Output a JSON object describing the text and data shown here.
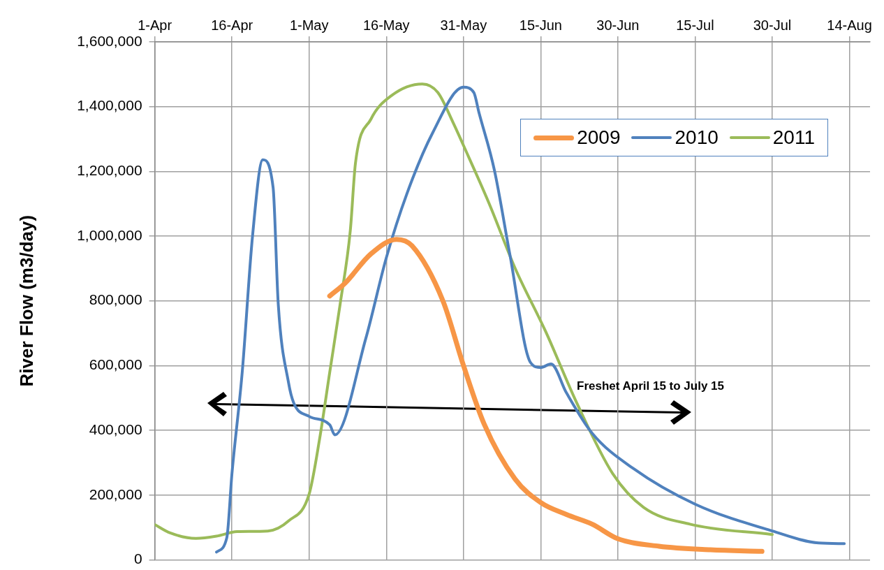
{
  "chart_data": {
    "type": "line",
    "ylabel": "River Flow (m3/day)",
    "xlim": [
      "--04-01",
      "--08-18"
    ],
    "xticks": [
      {
        "value": "--04-01",
        "label": "1-Apr"
      },
      {
        "value": "--04-16",
        "label": "16-Apr"
      },
      {
        "value": "--05-01",
        "label": "1-May"
      },
      {
        "value": "--05-16",
        "label": "16-May"
      },
      {
        "value": "--05-31",
        "label": "31-May"
      },
      {
        "value": "--06-15",
        "label": "15-Jun"
      },
      {
        "value": "--06-30",
        "label": "30-Jun"
      },
      {
        "value": "--07-15",
        "label": "15-Jul"
      },
      {
        "value": "--07-30",
        "label": "30-Jul"
      },
      {
        "value": "--08-14",
        "label": "14-Aug"
      }
    ],
    "ylim": [
      0,
      1600000
    ],
    "yticks": [
      0,
      {
        "value": 200000,
        "label": "200,000"
      },
      {
        "value": 400000,
        "label": "400,000"
      },
      {
        "value": 600000,
        "label": "600,000"
      },
      {
        "value": 800000,
        "label": "800,000"
      },
      {
        "value": 1000000,
        "label": "1,000,000"
      },
      {
        "value": 1200000,
        "label": "1,200,000"
      },
      {
        "value": 1400000,
        "label": "1,400,000"
      },
      {
        "value": 1600000,
        "label": "1,600,000"
      }
    ],
    "grid": true,
    "legend": "top right",
    "marker": "none",
    "line_style": "solid",
    "annotations": [
      "Freshet April 15 to July 15"
    ],
    "series": [
      {
        "name": "2009",
        "color": "#f79646",
        "x": [
          "--05-05",
          "--05-08",
          "--05-13",
          "--05-18",
          "--05-21",
          "--05-27",
          "--05-31",
          "--06-04",
          "--06-10",
          "--06-15",
          "--06-20",
          "--06-25",
          "--06-30",
          "--07-08",
          "--07-18",
          "--07-28"
        ],
        "values": [
          815000,
          855000,
          945000,
          990000,
          970000,
          800000,
          600000,
          420000,
          250000,
          177000,
          140000,
          110000,
          65000,
          42000,
          31000,
          26000
        ]
      },
      {
        "name": "2010",
        "color": "#4f81bd",
        "x": [
          "--04-13",
          "--04-15",
          "--04-16",
          "--04-18",
          "--04-20",
          "--04-22",
          "--04-24",
          "--04-25",
          "--04-27",
          "--04-28",
          "--05-01",
          "--05-05",
          "--05-06",
          "--05-12",
          "--05-16",
          "--05-20",
          "--05-25",
          "--05-31",
          "--06-02",
          "--06-03",
          "--06-06",
          "--06-09",
          "--06-13",
          "--06-15",
          "--06-17",
          "--06-20",
          "--06-25",
          "--07-03",
          "--07-15",
          "--07-30",
          "--08-08",
          "--08-13"
        ],
        "values": [
          24000,
          68000,
          266000,
          580000,
          1000000,
          1236000,
          1150000,
          790000,
          547000,
          485000,
          443000,
          417000,
          386000,
          683000,
          933000,
          1131000,
          1319000,
          1460000,
          1444000,
          1382000,
          1204000,
          944000,
          610000,
          594000,
          605000,
          516000,
          391000,
          282000,
          172000,
          89000,
          52000,
          50000
        ]
      },
      {
        "name": "2011",
        "color": "#9bbb59",
        "x": [
          "--04-01",
          "--04-04",
          "--04-09",
          "--04-13",
          "--04-17",
          "--04-23",
          "--04-27",
          "--05-01",
          "--05-03",
          "--05-05",
          "--05-07",
          "--05-09",
          "--05-10",
          "--05-13",
          "--05-17",
          "--05-23",
          "--05-26",
          "--05-29",
          "--05-31",
          "--06-05",
          "--06-10",
          "--06-16",
          "--06-22",
          "--06-29",
          "--07-05",
          "--07-14",
          "--07-30"
        ],
        "values": [
          109000,
          83000,
          66000,
          73000,
          87000,
          89000,
          120000,
          203000,
          370000,
          579000,
          787000,
          1017000,
          1225000,
          1361000,
          1434000,
          1470000,
          1444000,
          1350000,
          1280000,
          1100000,
          902000,
          704000,
          485000,
          266000,
          162000,
          110000,
          78000
        ]
      }
    ]
  }
}
